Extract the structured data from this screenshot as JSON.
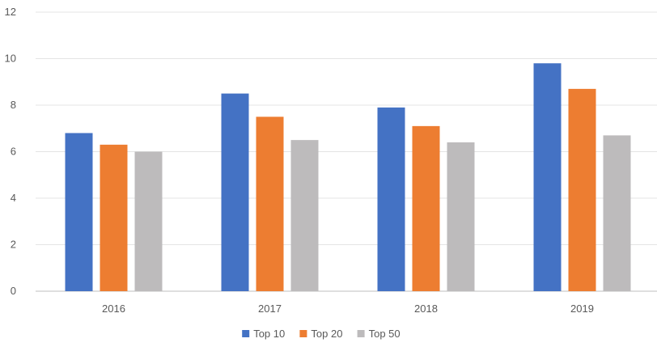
{
  "chart_data": {
    "type": "bar",
    "title": "",
    "xlabel": "",
    "ylabel": "",
    "categories": [
      "2016",
      "2017",
      "2018",
      "2019"
    ],
    "series": [
      {
        "name": "Top 10",
        "values": [
          6.8,
          8.5,
          7.9,
          9.8
        ],
        "color": "#4472C4"
      },
      {
        "name": "Top 20",
        "values": [
          6.3,
          7.5,
          7.1,
          8.7
        ],
        "color": "#ED7D31"
      },
      {
        "name": "Top 50",
        "values": [
          6.0,
          6.5,
          6.4,
          6.7
        ],
        "color": "#BDBBBC"
      }
    ],
    "ylim": [
      0,
      12
    ],
    "yticks": [
      "0",
      "2",
      "4",
      "6",
      "8",
      "10",
      "12"
    ],
    "grid": true,
    "legend": "bottom-center"
  }
}
